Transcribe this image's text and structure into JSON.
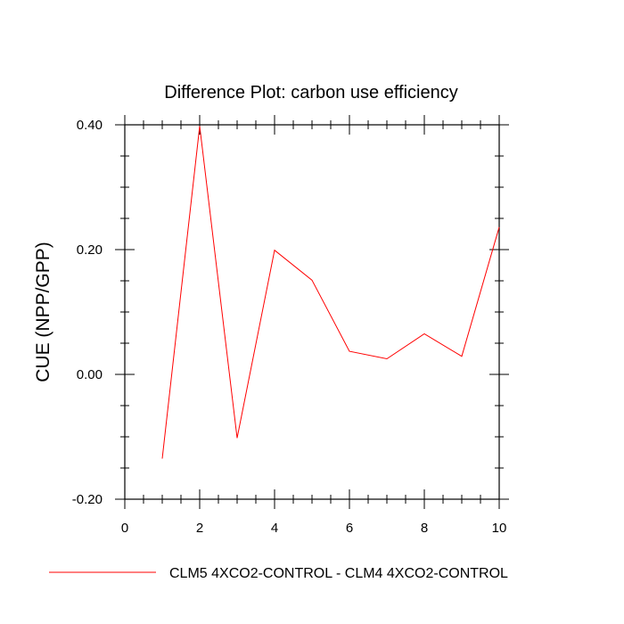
{
  "chart_data": {
    "type": "line",
    "title": "Difference Plot: carbon use efficiency",
    "xlabel": "",
    "ylabel": "CUE  (NPP/GPP)",
    "xlim": [
      0,
      10
    ],
    "ylim": [
      -0.2,
      0.4
    ],
    "x_ticks": [
      0,
      2,
      4,
      6,
      8,
      10
    ],
    "x_tick_labels": [
      "0",
      "2",
      "4",
      "6",
      "8",
      "10"
    ],
    "y_ticks": [
      -0.2,
      0.0,
      0.2,
      0.4
    ],
    "y_tick_labels": [
      "-0.20",
      "0.00",
      "0.20",
      "0.40"
    ],
    "grid": false,
    "legend_position": "bottom",
    "series": [
      {
        "name": "CLM5 4XCO2-CONTROL - CLM4 4XCO2-CONTROL",
        "color": "#ff0000",
        "x": [
          1,
          2,
          3,
          4,
          5,
          6,
          7,
          8,
          9,
          10
        ],
        "values": [
          -0.135,
          0.398,
          -0.102,
          0.199,
          0.151,
          0.037,
          0.025,
          0.065,
          0.029,
          0.236
        ]
      }
    ]
  }
}
